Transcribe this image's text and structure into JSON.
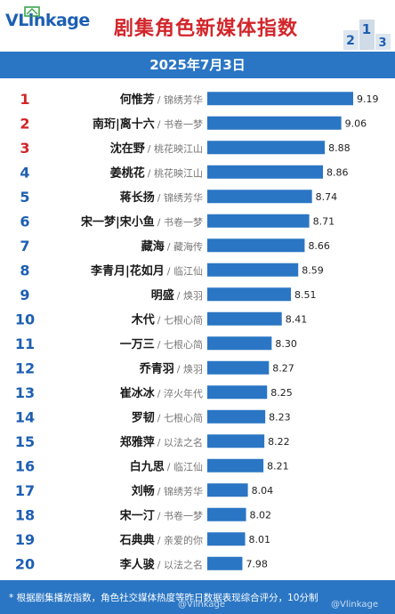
{
  "header": {
    "logo_text": "VLinkage",
    "title": "剧集角色新媒体指数",
    "date": "2025年7月3日"
  },
  "footer": {
    "note": "* 根据剧集播放指数，角色社交媒体热度等昨日数据表现综合评分，10分制",
    "watermark_left": "@Vlinkage",
    "watermark_right": "@Vlinkage"
  },
  "colors": {
    "bar": "#2a76c4",
    "rank_top3": "#d1262b",
    "rank_other": "#1d5fb3",
    "header_bg": "#2a76c4"
  },
  "chart_data": {
    "type": "bar",
    "orientation": "horizontal",
    "title": "剧集角色新媒体指数",
    "subtitle": "2025年7月3日",
    "rows": [
      {
        "rank": "1",
        "role": "何惟芳",
        "drama": "锦绣芳华",
        "value": 9.19
      },
      {
        "rank": "2",
        "role": "南珩|离十六",
        "drama": "书卷一梦",
        "value": 9.06
      },
      {
        "rank": "3",
        "role": "沈在野",
        "drama": "桃花映江山",
        "value": 8.88
      },
      {
        "rank": "4",
        "role": "姜桃花",
        "drama": "桃花映江山",
        "value": 8.86
      },
      {
        "rank": "5",
        "role": "蒋长扬",
        "drama": "锦绣芳华",
        "value": 8.74
      },
      {
        "rank": "6",
        "role": "宋一梦|宋小鱼",
        "drama": "书卷一梦",
        "value": 8.71
      },
      {
        "rank": "7",
        "role": "藏海",
        "drama": "藏海传",
        "value": 8.66
      },
      {
        "rank": "8",
        "role": "李青月|花如月",
        "drama": "临江仙",
        "value": 8.59
      },
      {
        "rank": "9",
        "role": "明盛",
        "drama": "焕羽",
        "value": 8.51
      },
      {
        "rank": "10",
        "role": "木代",
        "drama": "七根心简",
        "value": 8.41
      },
      {
        "rank": "11",
        "role": "一万三",
        "drama": "七根心简",
        "value": 8.3
      },
      {
        "rank": "12",
        "role": "乔青羽",
        "drama": "焕羽",
        "value": 8.27
      },
      {
        "rank": "13",
        "role": "崔冰冰",
        "drama": "淬火年代",
        "value": 8.25
      },
      {
        "rank": "14",
        "role": "罗韧",
        "drama": "七根心简",
        "value": 8.23
      },
      {
        "rank": "15",
        "role": "郑雅萍",
        "drama": "以法之名",
        "value": 8.22
      },
      {
        "rank": "16",
        "role": "白九思",
        "drama": "临江仙",
        "value": 8.21
      },
      {
        "rank": "17",
        "role": "刘畅",
        "drama": "锦绣芳华",
        "value": 8.04
      },
      {
        "rank": "18",
        "role": "宋一汀",
        "drama": "书卷一梦",
        "value": 8.02
      },
      {
        "rank": "19",
        "role": "石典典",
        "drama": "亲爱的你",
        "value": 8.01
      },
      {
        "rank": "20",
        "role": "李人骏",
        "drama": "以法之名",
        "value": 7.98
      }
    ]
  }
}
